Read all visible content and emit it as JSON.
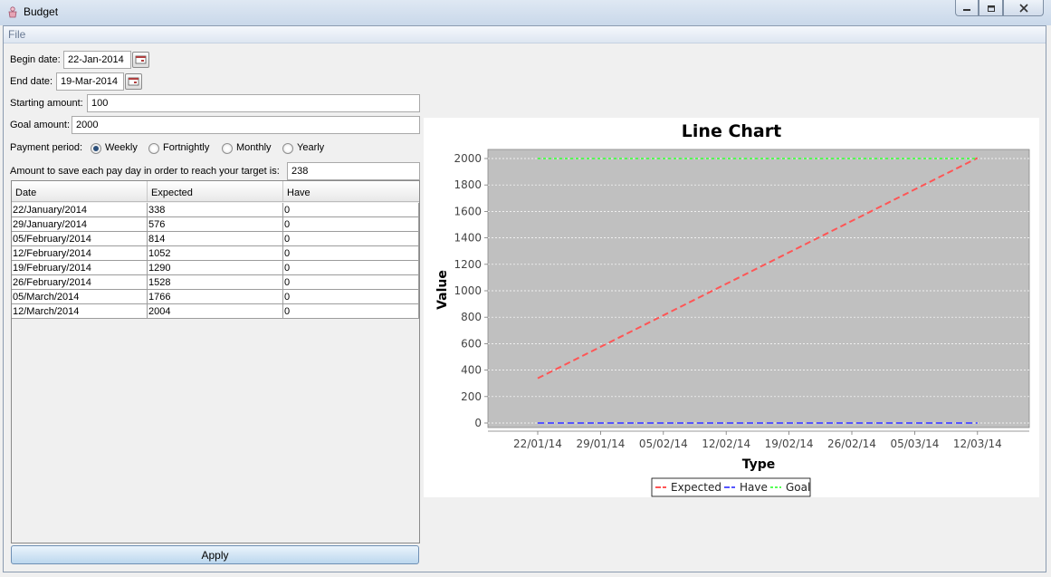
{
  "window": {
    "title": "Budget"
  },
  "menu": {
    "file": "File"
  },
  "form": {
    "begin_date_label": "Begin date:",
    "begin_date": "22-Jan-2014",
    "end_date_label": "End date:",
    "end_date": "19-Mar-2014",
    "starting_amount_label": "Starting amount:",
    "starting_amount": "100",
    "goal_amount_label": "Goal amount:",
    "goal_amount": "2000",
    "payment_period_label": "Payment period:",
    "periods": [
      {
        "label": "Weekly",
        "selected": true
      },
      {
        "label": "Fortnightly",
        "selected": false
      },
      {
        "label": "Monthly",
        "selected": false
      },
      {
        "label": "Yearly",
        "selected": false
      }
    ],
    "save_amount_label": "Amount to save each pay day in order to reach your target is:",
    "save_amount": "238"
  },
  "table": {
    "columns": [
      "Date",
      "Expected",
      "Have"
    ],
    "rows": [
      [
        "22/January/2014",
        "338",
        "0"
      ],
      [
        "29/January/2014",
        "576",
        "0"
      ],
      [
        "05/February/2014",
        "814",
        "0"
      ],
      [
        "12/February/2014",
        "1052",
        "0"
      ],
      [
        "19/February/2014",
        "1290",
        "0"
      ],
      [
        "26/February/2014",
        "1528",
        "0"
      ],
      [
        "05/March/2014",
        "1766",
        "0"
      ],
      [
        "12/March/2014",
        "2004",
        "0"
      ]
    ]
  },
  "apply_label": "Apply",
  "colors": {
    "plot_background": "#c0c0c0",
    "expected": "#ff5555",
    "have": "#5555ff",
    "goal": "#55ff55",
    "button_gradient_top": "#eaf4fc",
    "button_gradient_bottom": "#bcd7ee"
  },
  "chart_data": {
    "type": "line",
    "title": "Line Chart",
    "xlabel": "Type",
    "ylabel": "Value",
    "categories": [
      "22/01/14",
      "29/01/14",
      "05/02/14",
      "12/02/14",
      "19/02/14",
      "26/02/14",
      "05/03/14",
      "12/03/14"
    ],
    "series": [
      {
        "name": "Expected",
        "values": [
          338,
          576,
          814,
          1052,
          1290,
          1528,
          1766,
          2004
        ]
      },
      {
        "name": "Have",
        "values": [
          0,
          0,
          0,
          0,
          0,
          0,
          0,
          0
        ]
      },
      {
        "name": "Goal",
        "values": [
          2000,
          2000,
          2000,
          2000,
          2000,
          2000,
          2000,
          2000
        ]
      }
    ],
    "ylim": [
      0,
      2100
    ],
    "yticks": [
      0,
      200,
      400,
      600,
      800,
      1000,
      1200,
      1400,
      1600,
      1800,
      2000
    ],
    "grid": true,
    "legend": "bottom"
  }
}
